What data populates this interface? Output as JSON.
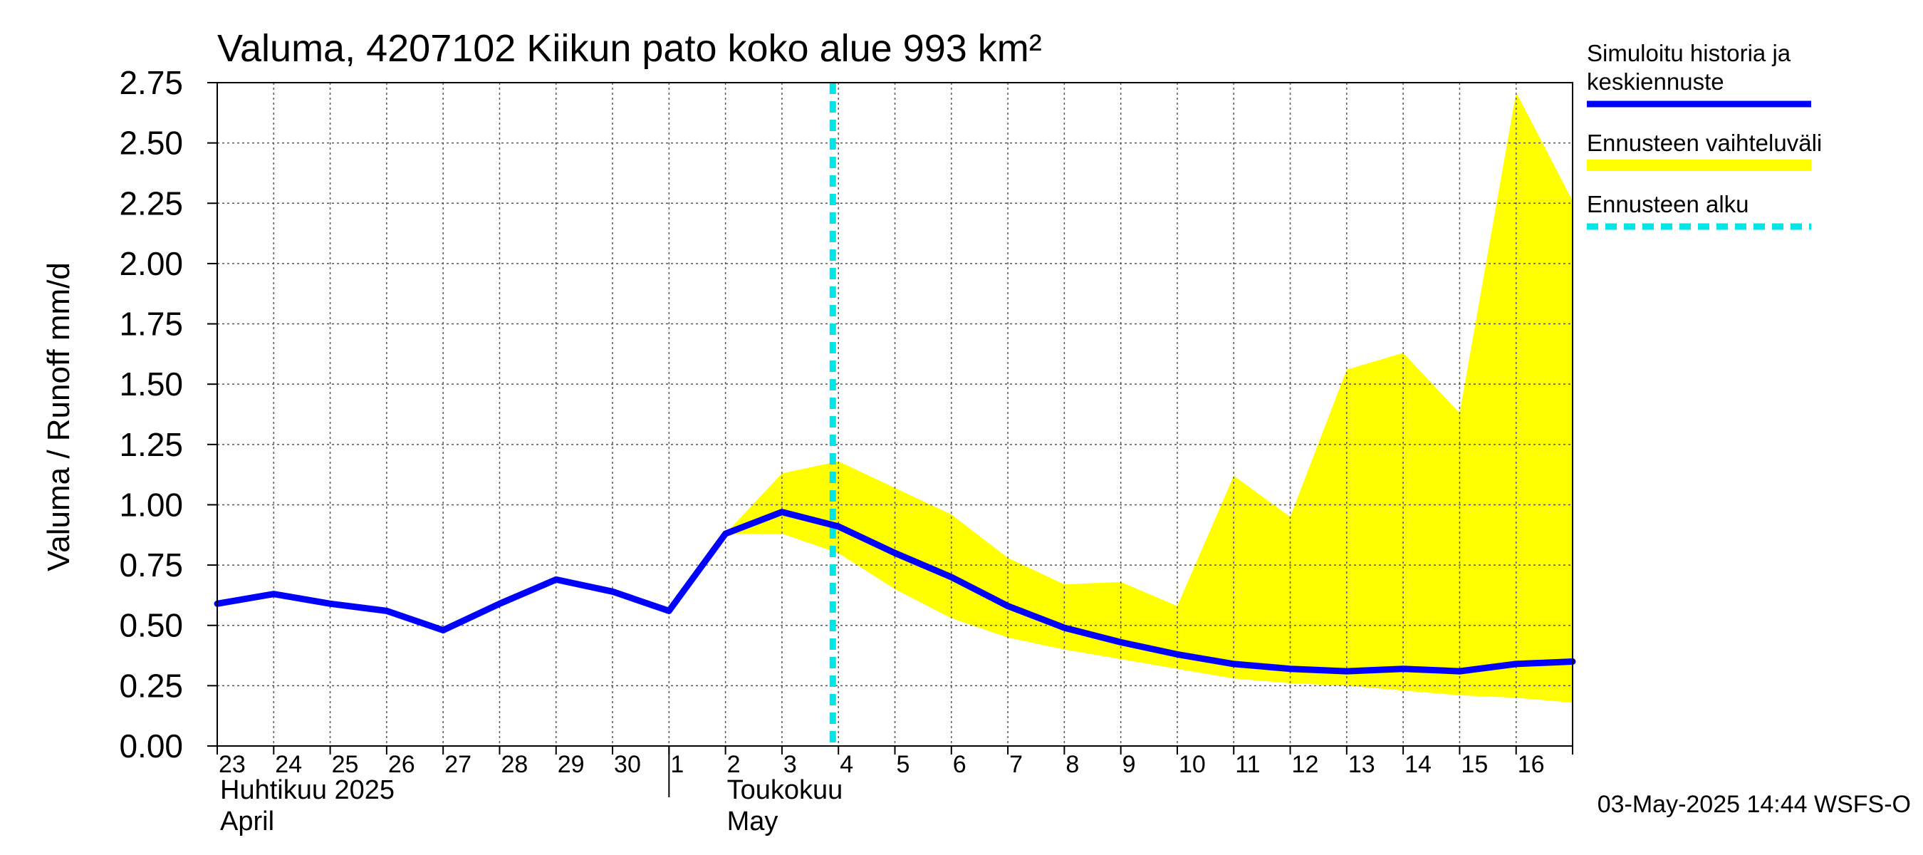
{
  "chart_data": {
    "type": "line",
    "title": "Valuma, 4207102 Kiikun pato koko alue 993 km²",
    "ylabel": "Valuma / Runoff     mm/d",
    "ylim": [
      0,
      2.75
    ],
    "yticks": [
      "0.00",
      "0.25",
      "0.50",
      "0.75",
      "1.00",
      "1.25",
      "1.50",
      "1.75",
      "2.00",
      "2.25",
      "2.50",
      "2.75"
    ],
    "x_day_labels": [
      "23",
      "24",
      "25",
      "26",
      "27",
      "28",
      "29",
      "30",
      "1",
      "2",
      "3",
      "4",
      "5",
      "6",
      "7",
      "8",
      "9",
      "10",
      "11",
      "12",
      "13",
      "14",
      "15",
      "16"
    ],
    "month_labels": [
      {
        "line1": "Huhtikuu  2025",
        "line2": "April"
      },
      {
        "line1": "Toukokuu",
        "line2": "May"
      }
    ],
    "forecast_start_day": 10.9,
    "series": [
      {
        "name": "Simuloitu historia ja keskiennuste",
        "color": "#0000ff",
        "x": [
          0,
          1,
          2,
          3,
          4,
          5,
          6,
          7,
          8,
          9,
          10,
          11,
          12,
          13,
          14,
          15,
          16,
          17,
          18,
          19,
          20,
          21,
          22,
          23,
          24
        ],
        "y": [
          0.59,
          0.63,
          0.59,
          0.56,
          0.48,
          0.59,
          0.69,
          0.64,
          0.56,
          0.88,
          0.97,
          0.91,
          0.8,
          0.7,
          0.58,
          0.49,
          0.43,
          0.38,
          0.34,
          0.32,
          0.31,
          0.32,
          0.31,
          0.34,
          0.35
        ]
      }
    ],
    "band": {
      "name": "Ennusteen vaihteluväli",
      "color": "#ffff00",
      "x": [
        9,
        10,
        11,
        12,
        13,
        14,
        15,
        16,
        17,
        18,
        19,
        20,
        21,
        22,
        23,
        24
      ],
      "lower": [
        0.88,
        0.88,
        0.8,
        0.65,
        0.53,
        0.45,
        0.4,
        0.36,
        0.32,
        0.28,
        0.26,
        0.25,
        0.23,
        0.21,
        0.2,
        0.18
      ],
      "upper": [
        0.88,
        1.13,
        1.18,
        1.07,
        0.96,
        0.78,
        0.67,
        0.68,
        0.58,
        1.12,
        0.95,
        1.56,
        1.63,
        1.38,
        2.71,
        2.26
      ]
    },
    "legend": {
      "position": "right",
      "entries": [
        {
          "line1": "Simuloitu historia ja",
          "line2": "keskiennuste",
          "color": "#0000ff",
          "style": "solid"
        },
        {
          "line1": "Ennusteen vaihteluväli",
          "line2": "",
          "color": "#ffff00",
          "style": "band"
        },
        {
          "line1": "Ennusteen alku",
          "line2": "",
          "color": "#00e5e5",
          "style": "dashed"
        }
      ]
    },
    "grid": true,
    "footer": "03-May-2025 14:44 WSFS-O"
  }
}
